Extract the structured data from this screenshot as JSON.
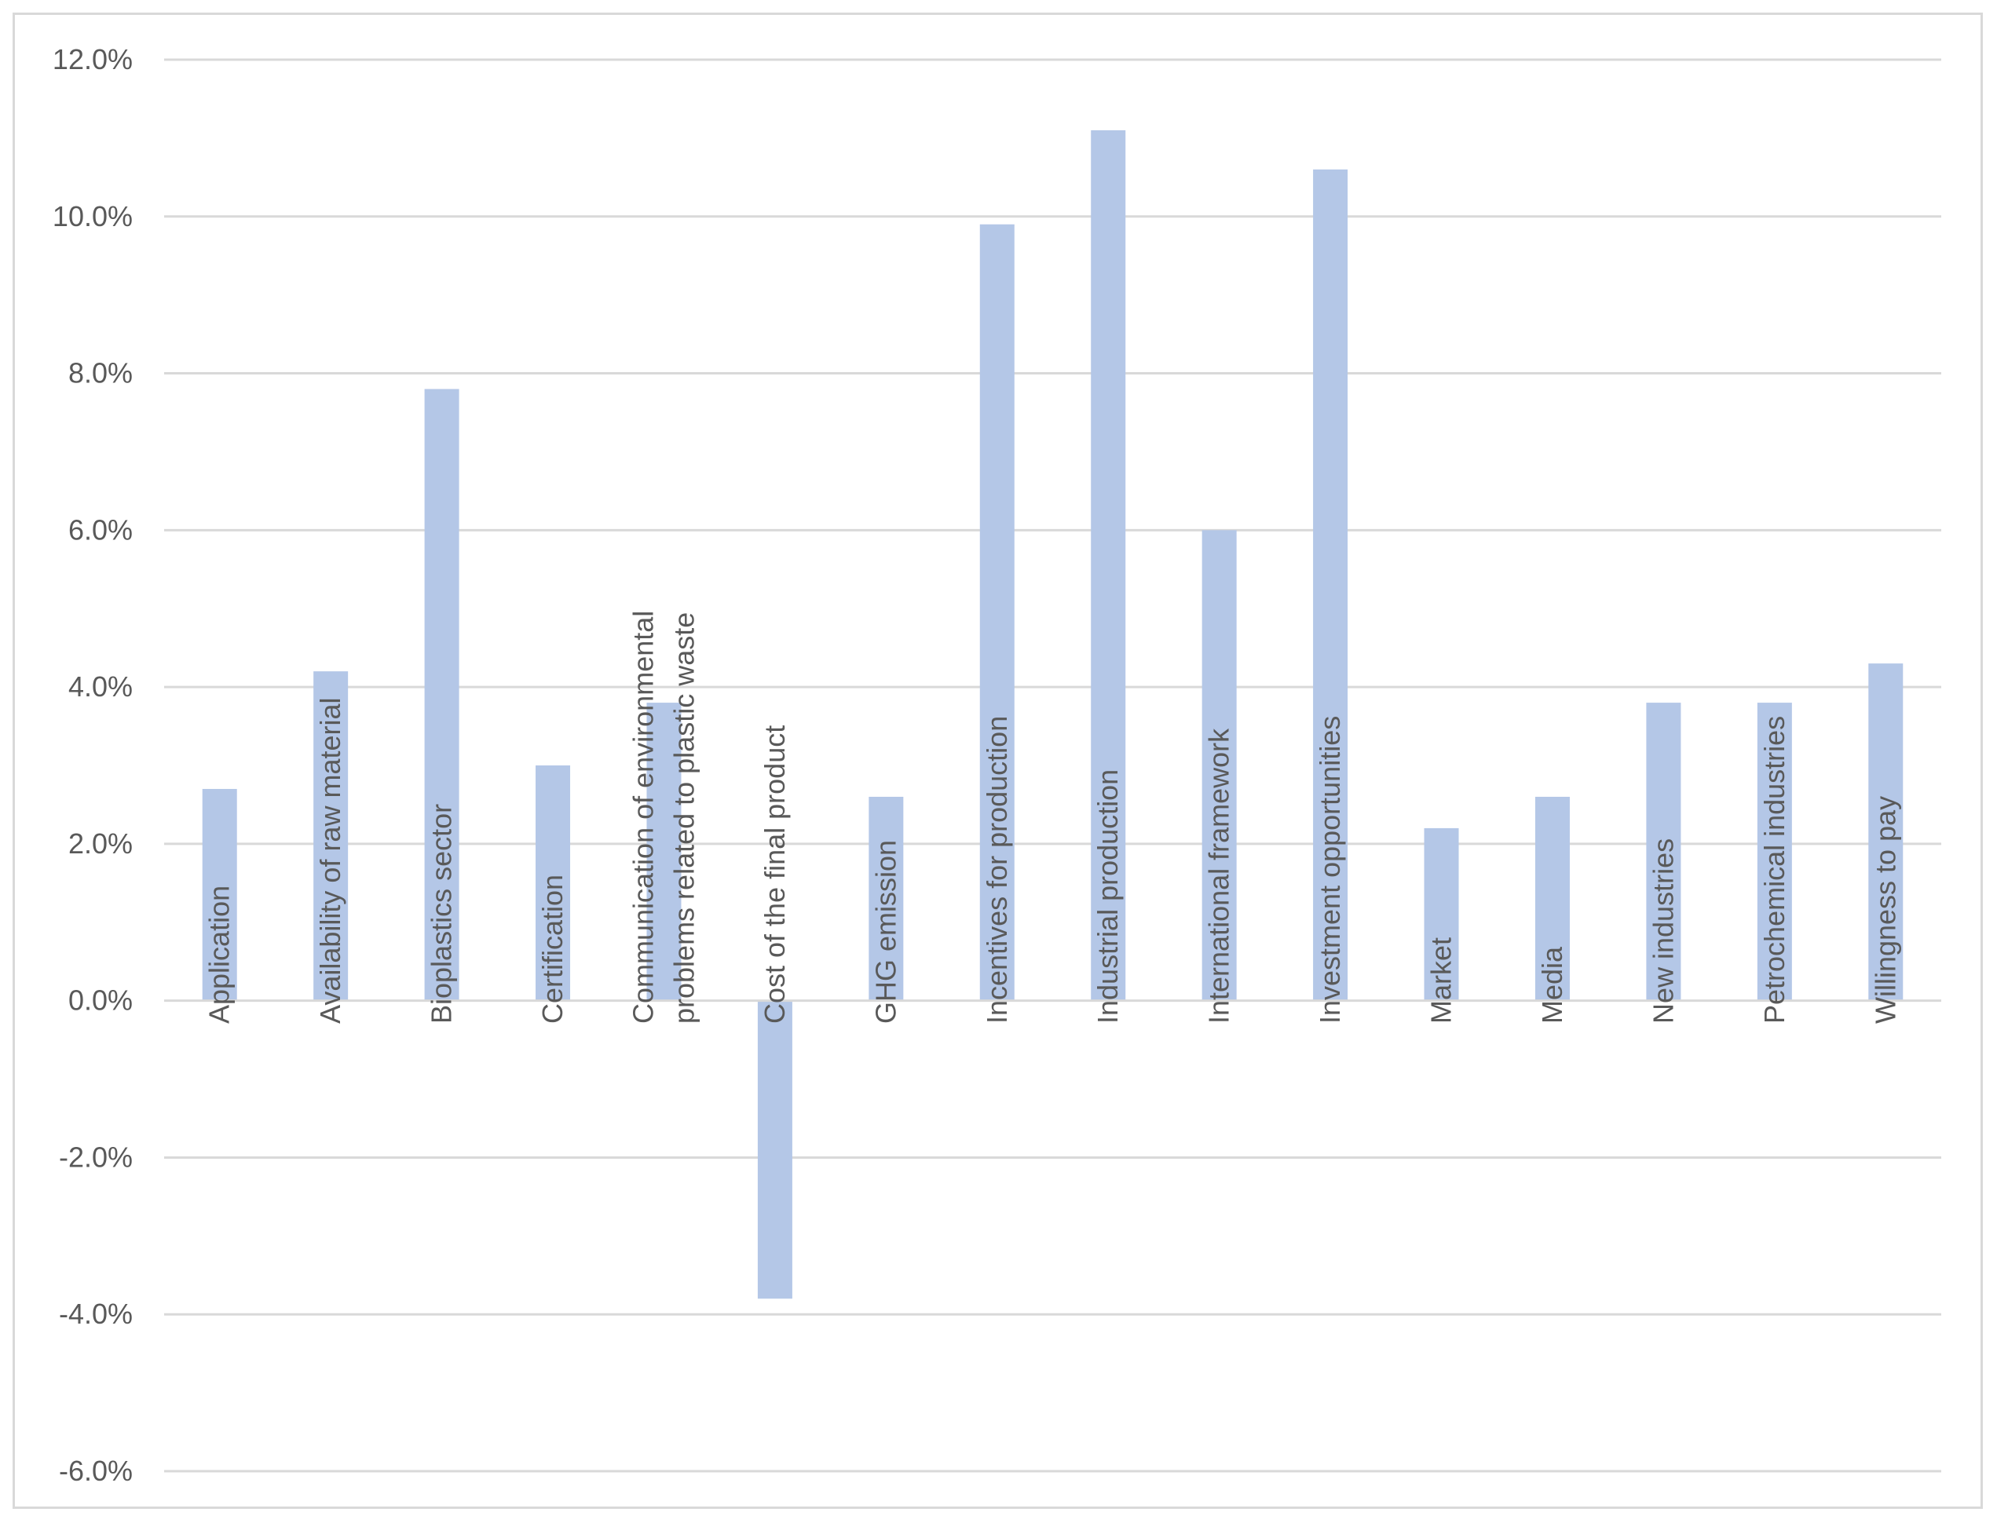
{
  "chart_data": {
    "type": "bar",
    "title": "",
    "xlabel": "",
    "ylabel": "",
    "categories": [
      [
        "Application"
      ],
      [
        "Availability of raw material"
      ],
      [
        "Bioplastics sector"
      ],
      [
        "Certification"
      ],
      [
        "Communication of environmental",
        "problems related to plastic waste"
      ],
      [
        "Cost of the final product"
      ],
      [
        "GHG emission"
      ],
      [
        "Incentives for production"
      ],
      [
        "Industrial production"
      ],
      [
        "International framework"
      ],
      [
        "Investment opportunities"
      ],
      [
        "Market"
      ],
      [
        "Media"
      ],
      [
        "New industries"
      ],
      [
        "Petrochemical industries"
      ],
      [
        "Willingness to pay"
      ]
    ],
    "values": [
      2.7,
      4.2,
      7.8,
      3.0,
      3.8,
      -3.8,
      2.6,
      9.9,
      11.1,
      6.0,
      10.6,
      2.2,
      2.6,
      3.8,
      3.8,
      4.3
    ],
    "ylim": [
      -6,
      12
    ],
    "yticks": [
      "12.0%",
      "10.0%",
      "8.0%",
      "6.0%",
      "4.0%",
      "2.0%",
      "0.0%",
      "-2.0%",
      "-4.0%",
      "-6.0%"
    ],
    "ytick_values": [
      12,
      10,
      8,
      6,
      4,
      2,
      0,
      -2,
      -4,
      -6
    ],
    "grid": true,
    "legend": "none",
    "colors": {
      "bar": "#b4c7e7",
      "grid": "#d9d9d9",
      "axis_text": "#595959"
    }
  }
}
